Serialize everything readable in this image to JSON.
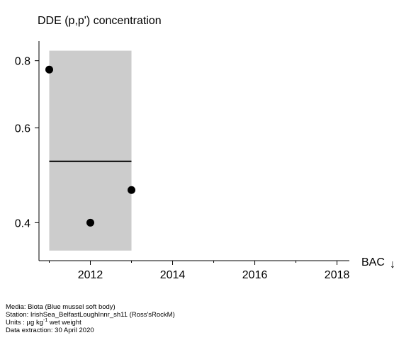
{
  "chart_data": {
    "type": "scatter",
    "title": "DDE (p,p') concentration",
    "xlabel": "",
    "ylabel": "",
    "x_axis": {
      "range": [
        2010.75,
        2018.3
      ],
      "ticks": [
        2012,
        2014,
        2016,
        2018
      ],
      "minor_ticks": [
        2011,
        2013,
        2015,
        2017
      ]
    },
    "y_axis": {
      "scale": "log",
      "range": [
        0.34,
        0.87
      ],
      "ticks": [
        0.4,
        0.6,
        0.8
      ]
    },
    "points": [
      {
        "x": 2011,
        "y": 0.77
      },
      {
        "x": 2012,
        "y": 0.4
      },
      {
        "x": 2013,
        "y": 0.46
      }
    ],
    "trend": {
      "x_start": 2011,
      "x_end": 2013,
      "y": 0.52
    },
    "confidence_band": {
      "x_start": 2011,
      "x_end": 2013,
      "y_low": 0.355,
      "y_high": 0.835
    },
    "reference": {
      "label": "BAC",
      "symbol": "↓"
    },
    "colors": {
      "band": "#cccccc",
      "points": "#000000",
      "trend": "#000000",
      "axis": "#000000"
    }
  },
  "footer": {
    "media": "Media: Biota (Blue mussel soft body)",
    "station": "Station: IrishSea_BelfastLoughInnr_sh11 (Ross'sRockM)",
    "units_prefix": "Units : µg kg",
    "units_exp": "-1",
    "units_suffix": " wet weight",
    "extraction": "Data extraction: 30 April 2020"
  }
}
